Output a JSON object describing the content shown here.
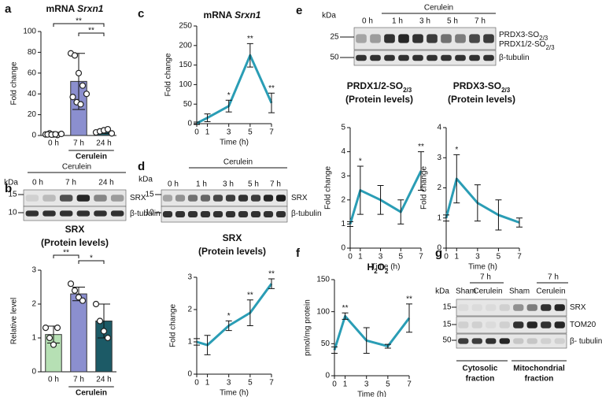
{
  "panel_labels": [
    "a",
    "b",
    "c",
    "d",
    "e",
    "f",
    "g"
  ],
  "chart_data": [
    {
      "type": "bar",
      "title": [
        {
          "text": "mRNA "
        },
        {
          "text": "Srxn1",
          "italic": true
        }
      ],
      "y_label": "Fold change",
      "categories": [
        "0 h",
        "7 h",
        "24 h"
      ],
      "values": [
        1,
        52,
        4
      ],
      "errors": [
        1,
        27,
        2
      ],
      "points": [
        [
          1,
          2,
          1,
          0.5,
          1.5,
          1,
          0.8,
          1.2
        ],
        [
          79,
          77,
          60,
          48,
          40,
          37,
          32,
          30
        ],
        [
          3,
          4,
          5,
          6,
          2
        ]
      ],
      "colors": [
        "#b9d8b4",
        "#8b8fcf",
        "#1c5a66"
      ],
      "ylim": [
        0,
        100
      ],
      "yticks": [
        0,
        20,
        40,
        60,
        80,
        100
      ],
      "group_label": "Cerulein",
      "brackets": [
        {
          "from": "0 h",
          "to": "24 h",
          "label": "**"
        },
        {
          "from": "7 h",
          "to": "24 h",
          "label": "**"
        }
      ]
    },
    {
      "type": "bar",
      "title": [
        {
          "text": "SRX"
        }
      ],
      "subtitle": "(Protein levels)",
      "y_label": "Relative level",
      "categories": [
        "0 h",
        "7 h",
        "24 h"
      ],
      "values": [
        1.1,
        2.3,
        1.5
      ],
      "errors": [
        0.25,
        0.2,
        0.5
      ],
      "points": [
        [
          1.3,
          1.0,
          0.8,
          1.3
        ],
        [
          2.6,
          2.4,
          2.2,
          2.1
        ],
        [
          2.0,
          1.5,
          1.2,
          1.0
        ]
      ],
      "colors": [
        "#b6e0b4",
        "#8b8fcf",
        "#1c5a66"
      ],
      "ylim": [
        0,
        3
      ],
      "yticks": [
        0,
        1,
        2,
        3
      ],
      "group_label": "Cerulein",
      "brackets": [
        {
          "from": "0 h",
          "to": "7 h",
          "label": "**"
        },
        {
          "from": "7 h",
          "to": "24 h",
          "label": "*"
        }
      ]
    },
    {
      "type": "line",
      "title": [
        {
          "text": "mRNA "
        },
        {
          "text": "Srxn1",
          "italic": true
        }
      ],
      "x_label": "Time (h)",
      "y_label": "Fold change",
      "x": [
        0,
        1,
        3,
        5,
        7
      ],
      "values": [
        1,
        15,
        45,
        175,
        53
      ],
      "errors": [
        3,
        10,
        15,
        30,
        25
      ],
      "significance": [
        null,
        null,
        "*",
        "**",
        "**"
      ],
      "color": "#2a9db5",
      "xlim": [
        0,
        7
      ],
      "xticks": [
        0,
        1,
        3,
        5,
        7
      ],
      "ylim": [
        0,
        250
      ],
      "yticks": [
        0,
        50,
        100,
        150,
        200,
        250
      ]
    },
    {
      "type": "line",
      "title": [
        {
          "text": "SRX"
        }
      ],
      "subtitle": "(Protein levels)",
      "x_label": "Time (h)",
      "y_label": "Fold change",
      "x": [
        0,
        1,
        3,
        5,
        7
      ],
      "values": [
        1,
        0.9,
        1.5,
        1.9,
        2.8
      ],
      "errors": [
        0.1,
        0.3,
        0.15,
        0.4,
        0.15
      ],
      "significance": [
        null,
        null,
        "*",
        "**",
        "**"
      ],
      "color": "#2a9db5",
      "xlim": [
        0,
        7
      ],
      "xticks": [
        0,
        1,
        3,
        5,
        7
      ],
      "ylim": [
        0,
        3
      ],
      "yticks": [
        0,
        1,
        2,
        3
      ]
    },
    {
      "type": "line",
      "title": [
        {
          "text": "PRDX1/2-SO"
        },
        {
          "text": "2/3",
          "sub": true
        }
      ],
      "subtitle": "(Protein levels)",
      "x_label": "Time (h)",
      "y_label": "Fold change",
      "x": [
        0,
        1,
        3,
        5,
        7
      ],
      "values": [
        1,
        2.4,
        2.0,
        1.5,
        3.2
      ],
      "errors": [
        0.1,
        1.0,
        0.6,
        0.5,
        0.8
      ],
      "significance": [
        null,
        "*",
        null,
        null,
        "**"
      ],
      "color": "#2a9db5",
      "xlim": [
        0,
        7
      ],
      "xticks": [
        0,
        1,
        3,
        5,
        7
      ],
      "ylim": [
        0,
        5
      ],
      "yticks": [
        0,
        1,
        2,
        3,
        4,
        5
      ]
    },
    {
      "type": "line",
      "title": [
        {
          "text": "PRDX3-SO"
        },
        {
          "text": "2/3",
          "sub": true
        }
      ],
      "subtitle": "(Protein levels)",
      "x_label": "Time (h)",
      "y_label": "Fold change",
      "x": [
        0,
        1,
        3,
        5,
        7
      ],
      "values": [
        1,
        2.3,
        1.5,
        1.1,
        0.85
      ],
      "errors": [
        0.1,
        0.8,
        0.6,
        0.5,
        0.15
      ],
      "significance": [
        null,
        "*",
        null,
        null,
        null
      ],
      "color": "#2a9db5",
      "xlim": [
        0,
        7
      ],
      "xticks": [
        0,
        1,
        3,
        5,
        7
      ],
      "ylim": [
        0,
        4
      ],
      "yticks": [
        0,
        1,
        2,
        3,
        4
      ]
    },
    {
      "type": "line",
      "title": [
        {
          "text": "H"
        },
        {
          "text": "2",
          "sub": true
        },
        {
          "text": "O"
        },
        {
          "text": "2",
          "sub": true
        }
      ],
      "x_label": "Time (h)",
      "y_label": "pmol/mg protein",
      "x": [
        0,
        1,
        3,
        5,
        7
      ],
      "values": [
        40,
        93,
        55,
        46,
        90
      ],
      "errors": [
        5,
        5,
        20,
        3,
        22
      ],
      "significance": [
        null,
        "**",
        null,
        null,
        "**"
      ],
      "color": "#2a9db5",
      "xlim": [
        0,
        7
      ],
      "xticks": [
        0,
        1,
        3,
        5,
        7
      ],
      "ylim": [
        0,
        150
      ],
      "yticks": [
        0,
        50,
        100,
        150
      ]
    }
  ],
  "blots": {
    "b": {
      "kda": "kDa",
      "group": "Cerulein",
      "lanes": [
        "0 h",
        "7 h",
        "24 h"
      ],
      "markers": [
        "15",
        "10"
      ],
      "proteins": [
        [
          {
            "text": "SRX"
          }
        ],
        [
          {
            "text": "β-tubulin"
          }
        ]
      ]
    },
    "d": {
      "kda": "kDa",
      "group": "Cerulein",
      "lanes": [
        "0 h",
        "1 h",
        "3 h",
        "5 h",
        "7 h"
      ],
      "markers": [
        "15",
        "10"
      ],
      "proteins": [
        [
          {
            "text": "SRX"
          }
        ],
        [
          {
            "text": "β-tubulin"
          }
        ]
      ]
    },
    "e": {
      "kda": "kDa",
      "group": "Cerulein",
      "lanes": [
        "0 h",
        "1 h",
        "3 h",
        "5 h",
        "7 h"
      ],
      "markers": [
        "25",
        "50"
      ],
      "proteins": [
        [
          {
            "text": "PRDX3-SO"
          },
          {
            "text": "2/3",
            "sub": true
          }
        ],
        [
          {
            "text": "PRDX1/2-SO"
          },
          {
            "text": "2/3",
            "sub": true
          }
        ],
        [
          {
            "text": "β-tubulin"
          }
        ]
      ]
    },
    "g": {
      "kda": "kDa",
      "groups": [
        "7 h",
        "7 h"
      ],
      "lanes": [
        "Sham",
        "Cerulein",
        "Sham",
        "Cerulein"
      ],
      "markers": [
        "15",
        "15",
        "50"
      ],
      "proteins": [
        [
          {
            "text": "SRX"
          }
        ],
        [
          {
            "text": "TOM20"
          }
        ],
        [
          {
            "text": "β- tubulin"
          }
        ]
      ],
      "fractions": [
        [
          "Cytosolic",
          "fraction"
        ],
        [
          "Mitochondrial",
          "fraction"
        ]
      ]
    }
  }
}
